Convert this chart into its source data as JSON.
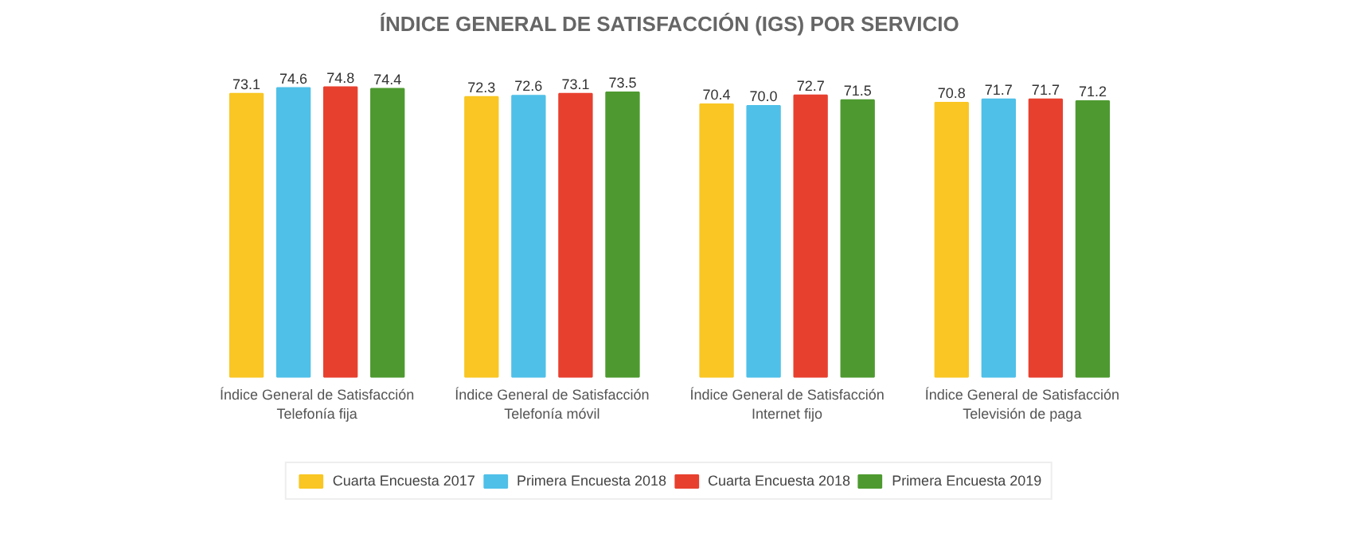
{
  "chart_data": {
    "type": "bar",
    "title": "ÍNDICE GENERAL DE SATISFACCIÓN (IGS) POR SERVICIO",
    "categories": [
      "Índice General de Satisfacción\nTelefonía fija",
      "Índice General de Satisfacción\nTelefonía móvil",
      "Índice General de Satisfacción\nInternet fijo",
      "Índice General de Satisfacción\nTelevisión de paga"
    ],
    "series": [
      {
        "name": "Cuarta Encuesta 2017",
        "color": "#f9c623",
        "values": [
          73.1,
          72.3,
          70.4,
          70.8
        ],
        "value_labels": [
          "73.1",
          "72.3",
          "70.4",
          "70.8"
        ]
      },
      {
        "name": "Primera Encuesta 2018",
        "color": "#4fc0e8",
        "values": [
          74.6,
          72.6,
          70.0,
          71.7
        ],
        "value_labels": [
          "74.6",
          "72.6",
          "70.0",
          "71.7"
        ]
      },
      {
        "name": "Cuarta Encuesta 2018",
        "color": "#e8402f",
        "values": [
          74.8,
          73.1,
          72.7,
          71.7
        ],
        "value_labels": [
          "74.8",
          "73.1",
          "72.7",
          "71.7"
        ]
      },
      {
        "name": "Primera Encuesta 2019",
        "color": "#4e9a30",
        "values": [
          74.4,
          73.5,
          71.5,
          71.2
        ],
        "value_labels": [
          "74.4",
          "73.5",
          "71.5",
          "71.2"
        ]
      }
    ],
    "legend": "bottom"
  }
}
